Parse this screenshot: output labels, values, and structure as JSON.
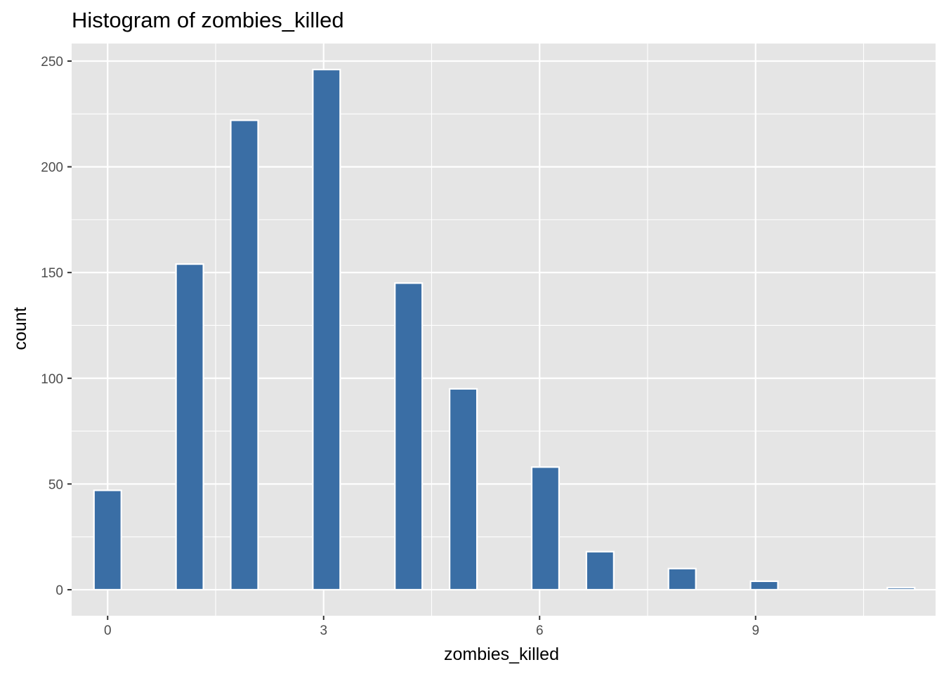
{
  "chart_data": {
    "type": "bar",
    "title": "Histogram of zombies_killed",
    "xlabel": "zombies_killed",
    "ylabel": "count",
    "xlim": [
      -0.5,
      11.5
    ],
    "ylim": [
      -12.3,
      258.3
    ],
    "x_ticks": [
      0,
      3,
      6,
      9
    ],
    "x_tick_labels": [
      "0",
      "3",
      "6",
      "9"
    ],
    "y_ticks": [
      0,
      50,
      100,
      150,
      200,
      250
    ],
    "y_tick_labels": [
      "0",
      "50",
      "100",
      "150",
      "200",
      "250"
    ],
    "grid": true,
    "legend": "none",
    "bins": [
      {
        "x_start": -0.19,
        "x_end": 0.19,
        "count": 47
      },
      {
        "x_start": 0.95,
        "x_end": 1.33,
        "count": 154
      },
      {
        "x_start": 1.71,
        "x_end": 2.09,
        "count": 222
      },
      {
        "x_start": 2.85,
        "x_end": 3.23,
        "count": 246
      },
      {
        "x_start": 3.99,
        "x_end": 4.37,
        "count": 145
      },
      {
        "x_start": 4.75,
        "x_end": 5.13,
        "count": 95
      },
      {
        "x_start": 5.89,
        "x_end": 6.27,
        "count": 58
      },
      {
        "x_start": 6.65,
        "x_end": 7.03,
        "count": 18
      },
      {
        "x_start": 7.79,
        "x_end": 8.17,
        "count": 10
      },
      {
        "x_start": 8.93,
        "x_end": 9.31,
        "count": 4
      },
      {
        "x_start": 10.83,
        "x_end": 11.21,
        "count": 1
      }
    ],
    "colors": {
      "bar_fill": "#3A6EA5",
      "bar_outline": "#FFFFFF",
      "panel_background": "#E5E5E5",
      "grid": "#FFFFFF"
    }
  }
}
